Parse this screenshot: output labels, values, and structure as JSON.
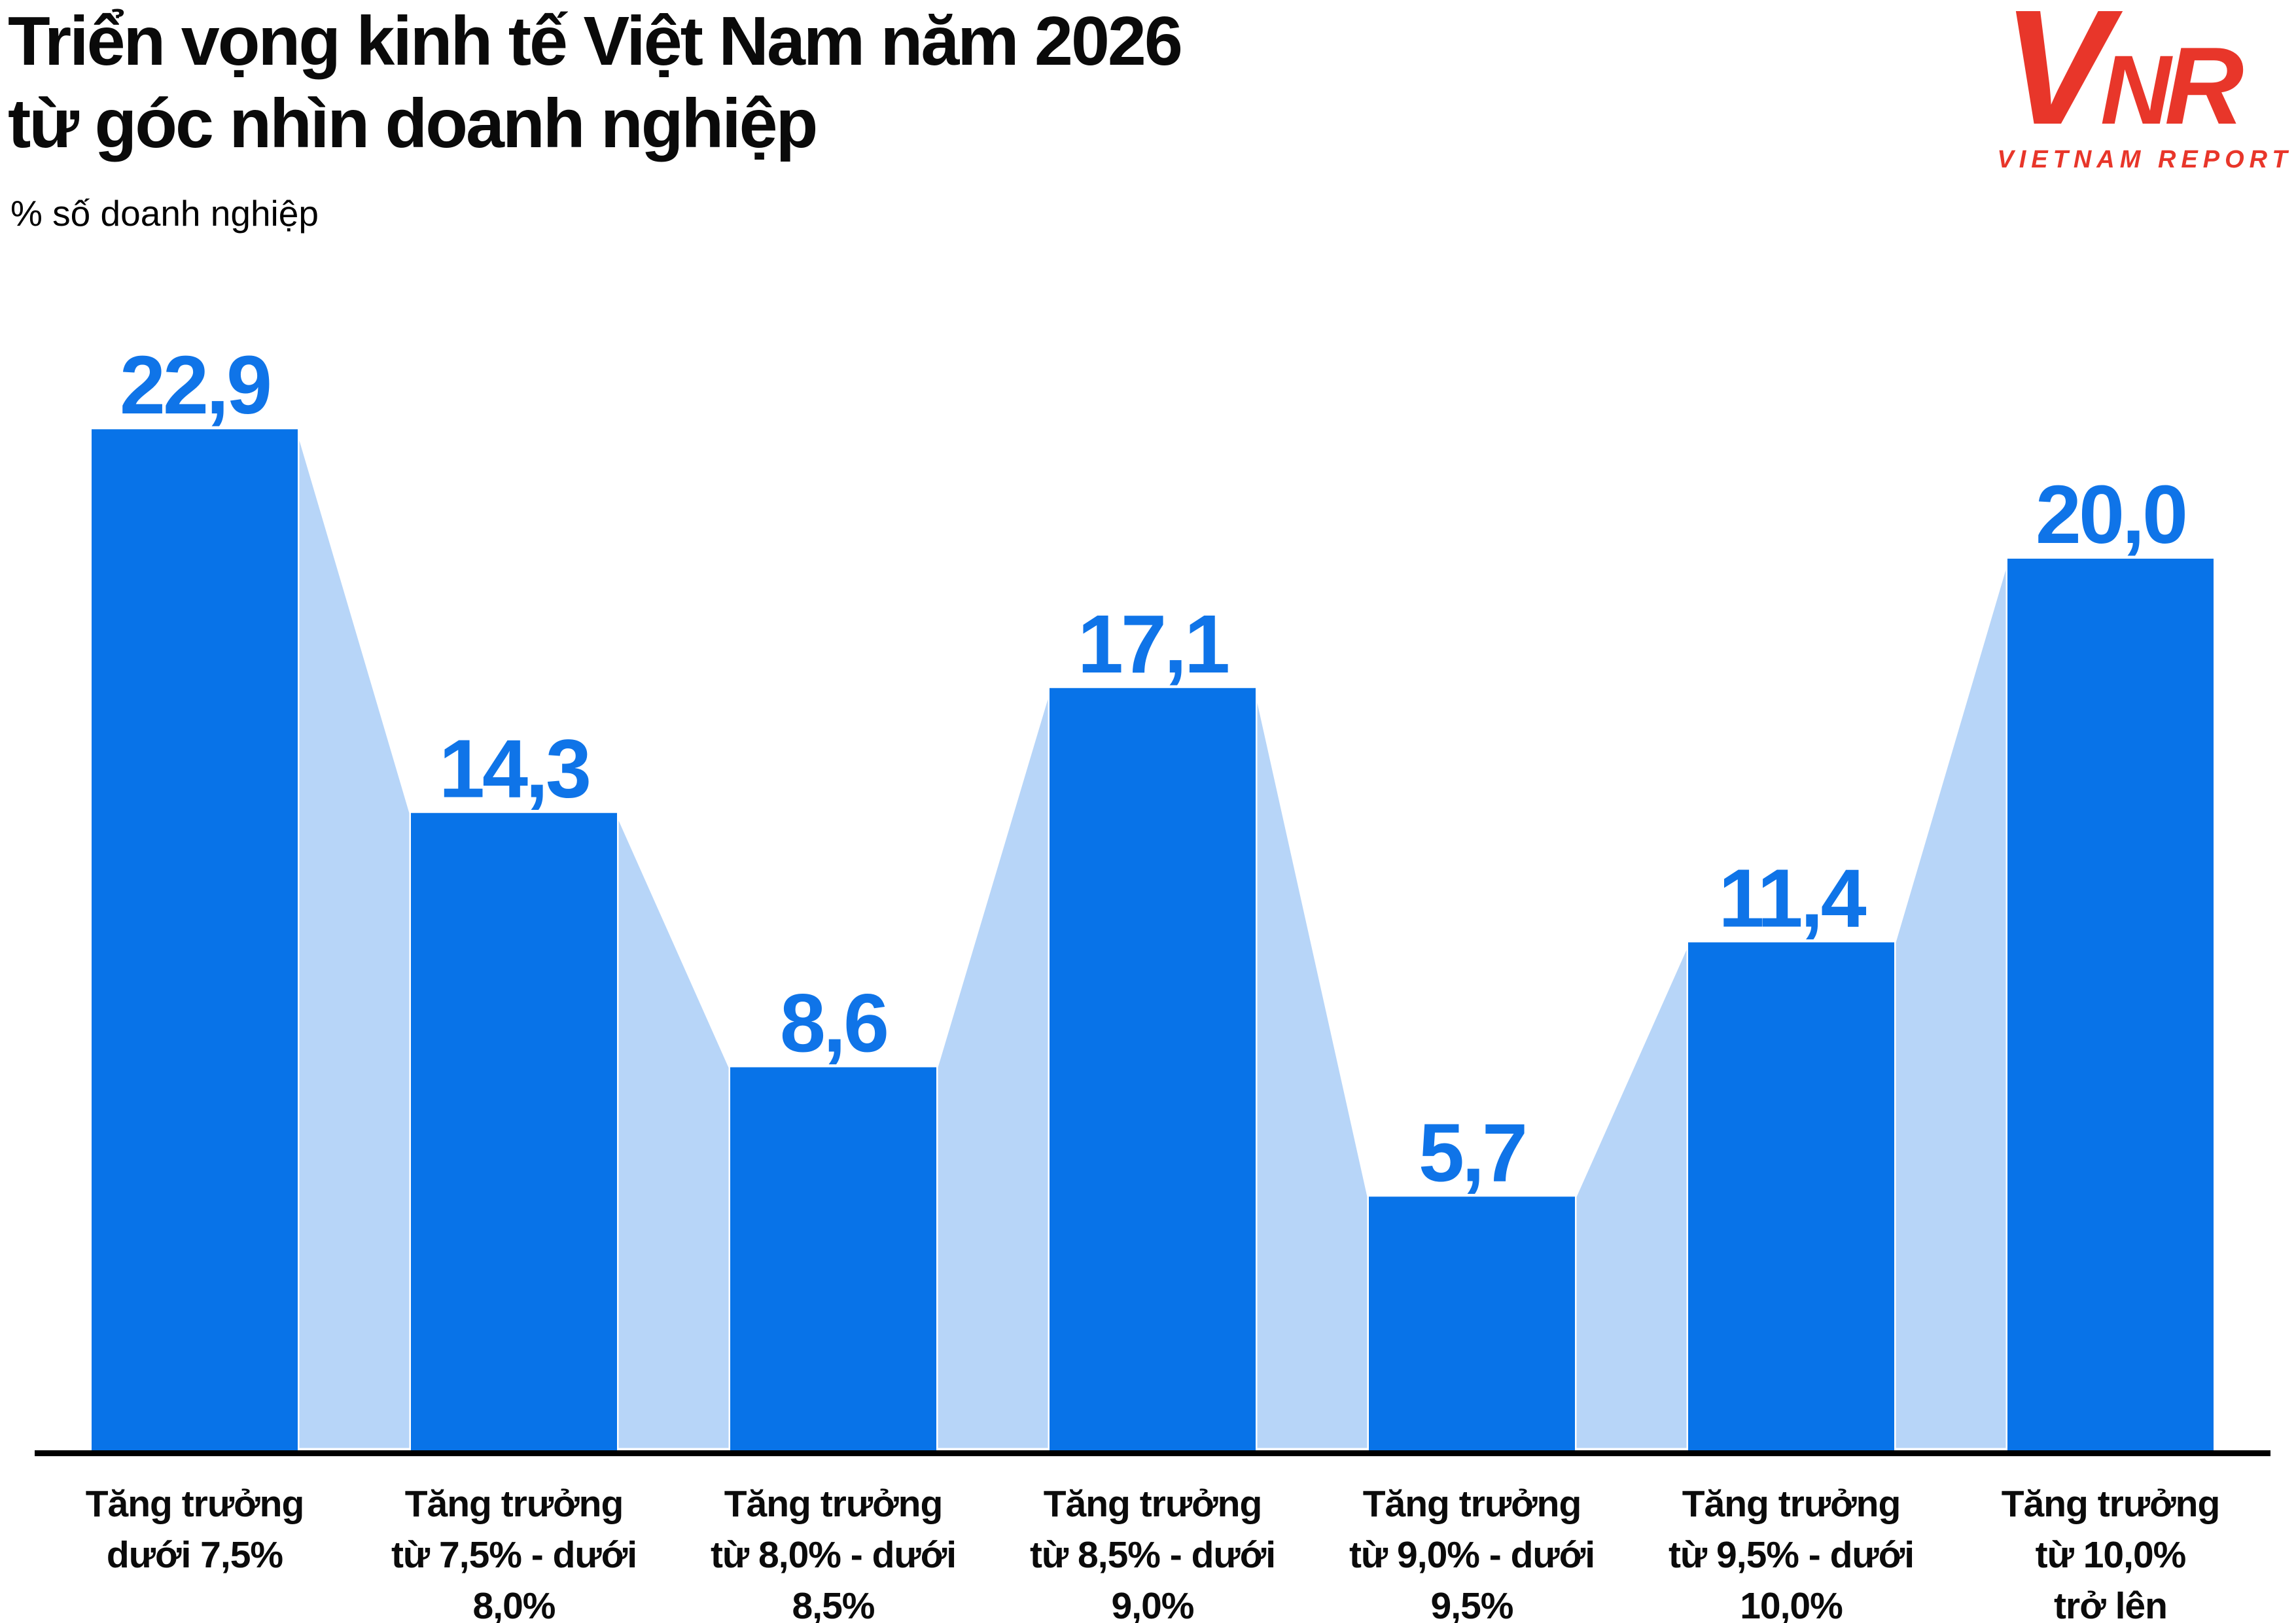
{
  "header": {
    "title_line1": "Triển vọng kinh tế Việt Nam năm 2026",
    "title_line2": "từ góc nhìn doanh nghiệp",
    "subtitle": "% số doanh nghiệp"
  },
  "logo": {
    "letter_v": "V",
    "letter_n": "N",
    "letter_r": "R",
    "caption": "VIETNAM REPORT",
    "color": "#e8362a"
  },
  "chart_data": {
    "type": "bar",
    "title": "Triển vọng kinh tế Việt Nam năm 2026 từ góc nhìn doanh nghiệp",
    "xlabel": "",
    "ylabel": "% số doanh nghiệp",
    "ylim": [
      0,
      24
    ],
    "grid": false,
    "legend": null,
    "categories": [
      [
        "Tăng trưởng",
        "dưới 7,5%"
      ],
      [
        "Tăng trưởng",
        "từ 7,5% - dưới",
        "8,0%"
      ],
      [
        "Tăng trưởng",
        "từ 8,0% - dưới",
        "8,5%"
      ],
      [
        "Tăng trưởng",
        "từ 8,5% - dưới",
        "9,0%"
      ],
      [
        "Tăng trưởng",
        "từ 9,0% - dưới",
        "9,5%"
      ],
      [
        "Tăng trưởng",
        "từ 9,5% - dưới",
        "10,0%"
      ],
      [
        "Tăng trưởng",
        "từ 10,0%",
        "trở lên"
      ]
    ],
    "values": [
      22.9,
      14.3,
      8.6,
      17.1,
      5.7,
      11.4,
      20.0
    ],
    "value_labels": [
      "22,9",
      "14,3",
      "8,6",
      "17,1",
      "5,7",
      "11,4",
      "20,0"
    ],
    "colors": {
      "bar": "#0873e8",
      "connector": "#b7d5f8",
      "connector_stroke": "#ffffff",
      "value_label": "#0f74e8",
      "category_label": "#0b0b0b",
      "axis": "#000000"
    }
  }
}
